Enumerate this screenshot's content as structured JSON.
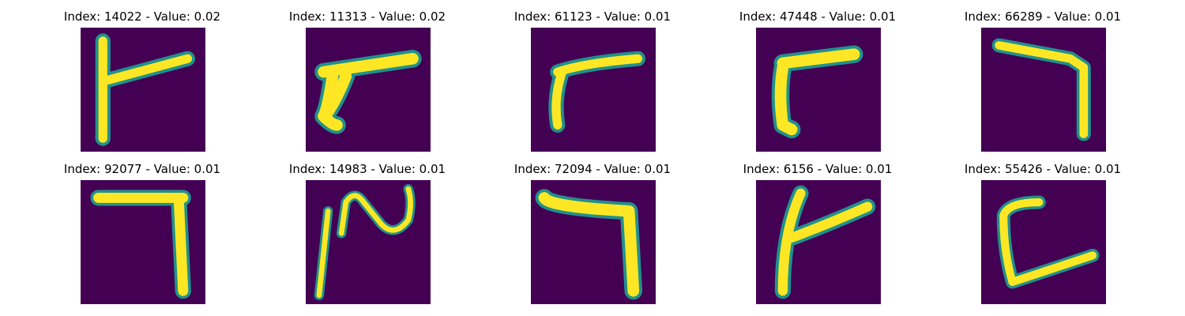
{
  "figure": {
    "background": "#ffffff",
    "image_colormap": "viridis",
    "image_background_color": "#440154",
    "stroke_color": "#fde725",
    "edge_color": "#21918c"
  },
  "panels": [
    {
      "title": "Index: 14022 - Value: 0.02",
      "index": 14022,
      "value": 0.02,
      "shape": "p0"
    },
    {
      "title": "Index: 11313 - Value: 0.02",
      "index": 11313,
      "value": 0.02,
      "shape": "p1"
    },
    {
      "title": "Index: 61123 - Value: 0.01",
      "index": 61123,
      "value": 0.01,
      "shape": "p2"
    },
    {
      "title": "Index: 47448 - Value: 0.01",
      "index": 47448,
      "value": 0.01,
      "shape": "p3"
    },
    {
      "title": "Index: 66289 - Value: 0.01",
      "index": 66289,
      "value": 0.01,
      "shape": "p4"
    },
    {
      "title": "Index: 92077 - Value: 0.01",
      "index": 92077,
      "value": 0.01,
      "shape": "p5"
    },
    {
      "title": "Index: 14983 - Value: 0.01",
      "index": 14983,
      "value": 0.01,
      "shape": "p6"
    },
    {
      "title": "Index: 72094 - Value: 0.01",
      "index": 72094,
      "value": 0.01,
      "shape": "p7"
    },
    {
      "title": "Index: 6156 - Value: 0.01",
      "index": 6156,
      "value": 0.01,
      "shape": "p8"
    },
    {
      "title": "Index: 55426 - Value: 0.01",
      "index": 55426,
      "value": 0.01,
      "shape": "p9"
    }
  ]
}
